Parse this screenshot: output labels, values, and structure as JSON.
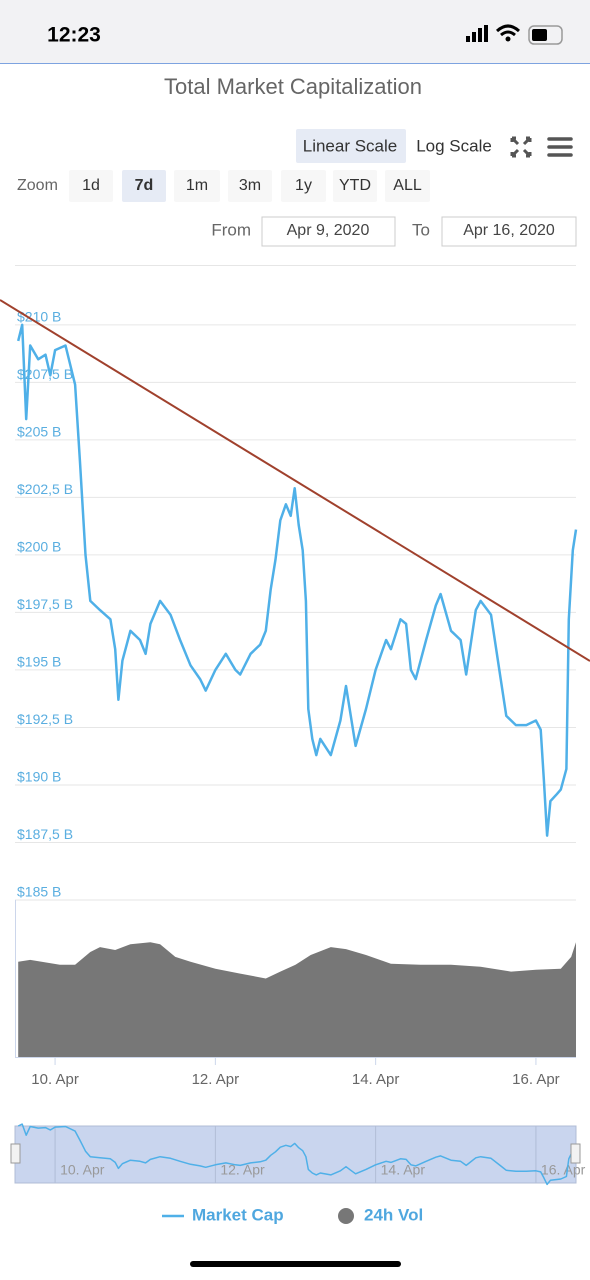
{
  "status_bar": {
    "time": "12:23"
  },
  "controls": {
    "scale_buttons": [
      "Linear Scale",
      "Log Scale"
    ],
    "zoom_label": "Zoom",
    "zoom_buttons": [
      "1d",
      "7d",
      "1m",
      "3m",
      "1y",
      "YTD",
      "ALL"
    ],
    "from_label": "From",
    "from_date": "Apr 9, 2020",
    "to_label": "To",
    "to_date": "Apr 16, 2020"
  },
  "chart_data": {
    "type": "line",
    "title": "Total Market Capitalization",
    "xlim": [
      9.5,
      16.5
    ],
    "xticks": [
      {
        "value": 10,
        "label": "10. Apr"
      },
      {
        "value": 12,
        "label": "12. Apr"
      },
      {
        "value": 14,
        "label": "14. Apr"
      },
      {
        "value": 16,
        "label": "16. Apr"
      }
    ],
    "ylim": [
      185,
      212.6
    ],
    "yticks": [
      {
        "value": 185,
        "label": "$185 B"
      },
      {
        "value": 187.5,
        "label": "$187,5 B"
      },
      {
        "value": 190,
        "label": "$190 B"
      },
      {
        "value": 192.5,
        "label": "$192,5 B"
      },
      {
        "value": 195,
        "label": "$195 B"
      },
      {
        "value": 197.5,
        "label": "$197,5 B"
      },
      {
        "value": 200,
        "label": "$200 B"
      },
      {
        "value": 202.5,
        "label": "$202,5 B"
      },
      {
        "value": 205,
        "label": "$205 B"
      },
      {
        "value": 207.5,
        "label": "$207,5 B"
      },
      {
        "value": 210,
        "label": "$210 B"
      }
    ],
    "y2lim": [
      0,
      160
    ],
    "grid": true,
    "series": [
      {
        "name": "Market Cap",
        "color": "#4fb0e8",
        "x": [
          9.54,
          9.59,
          9.64,
          9.69,
          9.79,
          9.88,
          9.94,
          10.0,
          10.13,
          10.25,
          10.31,
          10.38,
          10.44,
          10.56,
          10.69,
          10.75,
          10.79,
          10.84,
          10.94,
          11.06,
          11.13,
          11.19,
          11.31,
          11.44,
          11.56,
          11.69,
          11.81,
          11.88,
          12.0,
          12.13,
          12.25,
          12.31,
          12.44,
          12.56,
          12.63,
          12.69,
          12.75,
          12.81,
          12.88,
          12.94,
          12.99,
          13.04,
          13.09,
          13.13,
          13.16,
          13.21,
          13.26,
          13.31,
          13.44,
          13.56,
          13.63,
          13.69,
          13.75,
          13.88,
          14.0,
          14.13,
          14.19,
          14.31,
          14.38,
          14.44,
          14.5,
          14.63,
          14.75,
          14.81,
          14.94,
          15.06,
          15.13,
          15.25,
          15.31,
          15.44,
          15.56,
          15.63,
          15.75,
          15.88,
          16.0,
          16.06,
          16.1,
          16.14,
          16.18,
          16.26,
          16.31,
          16.38,
          16.41,
          16.46,
          16.5
        ],
        "values": [
          209.3,
          210.0,
          205.9,
          209.1,
          208.5,
          208.7,
          207.8,
          208.9,
          209.1,
          207.4,
          204.1,
          200.0,
          198.0,
          197.6,
          197.2,
          195.9,
          193.7,
          195.4,
          196.7,
          196.3,
          195.7,
          197.0,
          198.0,
          197.4,
          196.3,
          195.2,
          194.6,
          194.1,
          195.0,
          195.7,
          195.0,
          194.8,
          195.7,
          196.1,
          196.7,
          198.5,
          199.8,
          201.5,
          202.2,
          201.7,
          202.9,
          201.3,
          200.2,
          198.0,
          193.3,
          192.0,
          191.3,
          192.0,
          191.3,
          192.8,
          194.3,
          193.0,
          191.7,
          193.3,
          195.0,
          196.3,
          195.9,
          197.2,
          197.0,
          195.0,
          194.6,
          196.3,
          197.8,
          198.3,
          196.7,
          196.3,
          194.8,
          197.6,
          198.0,
          197.4,
          194.6,
          193.0,
          192.6,
          192.6,
          192.8,
          192.4,
          190.2,
          187.8,
          189.3,
          189.6,
          189.8,
          190.7,
          197.2,
          200.2,
          201.1
        ]
      },
      {
        "name": "24h Vol",
        "color": "#777777",
        "type": "area",
        "axis": "y2",
        "x": [
          9.54,
          9.69,
          10.06,
          10.25,
          10.44,
          10.56,
          10.75,
          10.94,
          11.19,
          11.31,
          11.5,
          11.69,
          12.0,
          12.31,
          12.63,
          12.81,
          13.0,
          13.19,
          13.44,
          13.63,
          13.88,
          14.19,
          14.56,
          14.94,
          15.31,
          15.69,
          16.0,
          16.31,
          16.44,
          16.5
        ],
        "values": [
          97,
          99,
          94,
          94,
          107,
          112,
          109,
          115,
          117,
          115,
          102,
          97,
          90,
          85,
          80,
          87,
          94,
          104,
          112,
          110,
          104,
          95,
          94,
          94,
          92,
          87,
          89,
          90,
          102,
          117
        ]
      }
    ]
  }
}
